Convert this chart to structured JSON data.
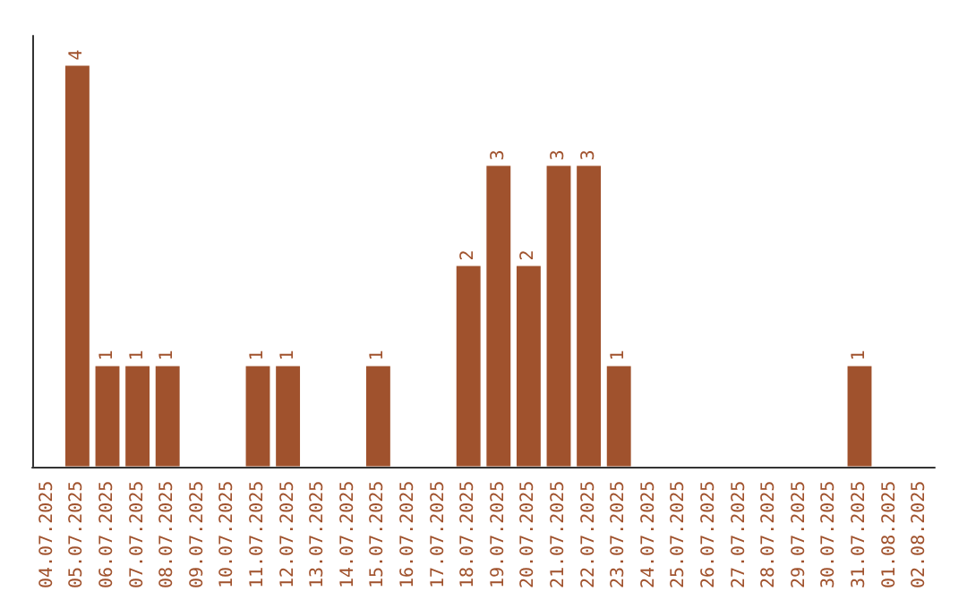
{
  "chart_data": {
    "type": "bar",
    "categories": [
      "04.07.2025",
      "05.07.2025",
      "06.07.2025",
      "07.07.2025",
      "08.07.2025",
      "09.07.2025",
      "10.07.2025",
      "11.07.2025",
      "12.07.2025",
      "13.07.2025",
      "14.07.2025",
      "15.07.2025",
      "16.07.2025",
      "17.07.2025",
      "18.07.2025",
      "19.07.2025",
      "20.07.2025",
      "21.07.2025",
      "22.07.2025",
      "23.07.2025",
      "24.07.2025",
      "25.07.2025",
      "26.07.2025",
      "27.07.2025",
      "28.07.2025",
      "29.07.2025",
      "30.07.2025",
      "31.07.2025",
      "01.08.2025",
      "02.08.2025"
    ],
    "values": [
      0,
      4,
      1,
      1,
      1,
      0,
      0,
      1,
      1,
      0,
      0,
      1,
      0,
      0,
      2,
      3,
      2,
      3,
      3,
      1,
      0,
      0,
      0,
      0,
      0,
      0,
      0,
      1,
      0,
      0
    ],
    "value_labels": [
      null,
      "4",
      "1",
      "1",
      "1",
      null,
      null,
      "1",
      "1",
      null,
      null,
      "1",
      null,
      null,
      "2",
      "3",
      "2",
      "3",
      "3",
      "1",
      null,
      null,
      null,
      null,
      null,
      null,
      null,
      "1",
      null,
      null
    ],
    "color": "#a0522d"
  }
}
